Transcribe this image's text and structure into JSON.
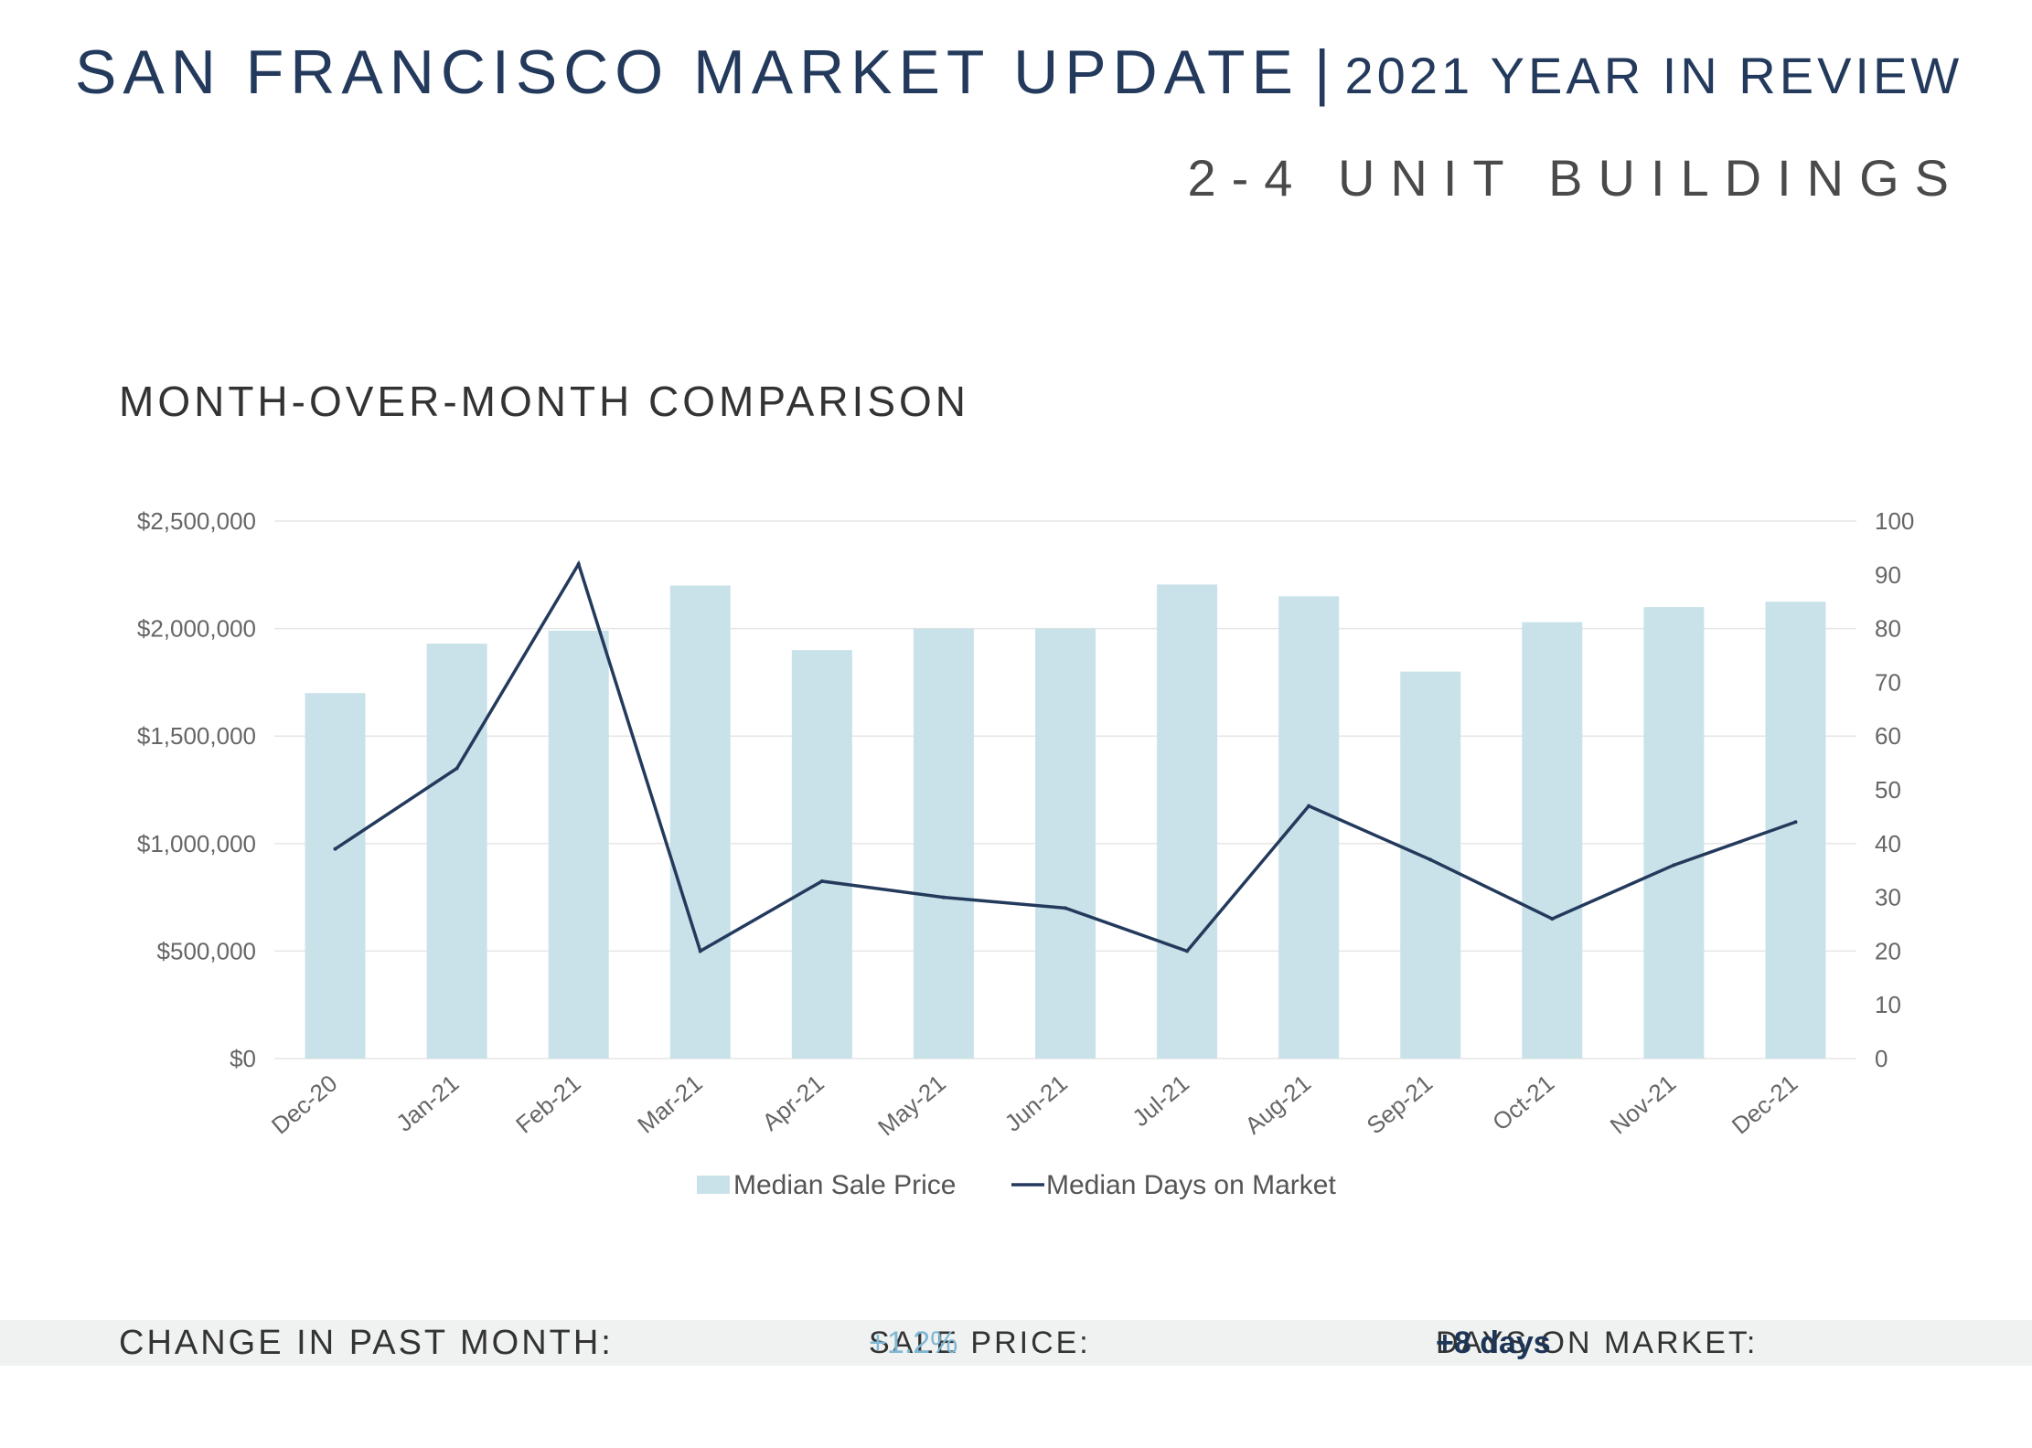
{
  "header": {
    "title": "SAN FRANCISCO MARKET UPDATE",
    "separator": "|",
    "year_label": "2021 YEAR IN REVIEW",
    "subtitle": "2-4 UNIT BUILDINGS"
  },
  "section_title": "MONTH-OVER-MONTH COMPARISON",
  "colors": {
    "bar": "#c9e2e9",
    "line": "#233a5c",
    "grid": "#e6e6e6",
    "tick_text": "#666666",
    "accent_price": "#7fb8d4",
    "accent_days": "#1d3557"
  },
  "chart_data": {
    "type": "bar+line",
    "title": "MONTH-OVER-MONTH COMPARISON",
    "categories": [
      "Dec-20",
      "Jan-21",
      "Feb-21",
      "Mar-21",
      "Apr-21",
      "May-21",
      "Jun-21",
      "Jul-21",
      "Aug-21",
      "Sep-21",
      "Oct-21",
      "Nov-21",
      "Dec-21"
    ],
    "series": [
      {
        "name": "Median Sale Price",
        "type": "bar",
        "axis": "left",
        "values": [
          1700000,
          1930000,
          1990000,
          2200000,
          1900000,
          2000000,
          2000000,
          2205000,
          2150000,
          1800000,
          2030000,
          2100000,
          2125000
        ]
      },
      {
        "name": "Median Days on Market",
        "type": "line",
        "axis": "right",
        "values": [
          39,
          54,
          92,
          20,
          33,
          30,
          28,
          20,
          47,
          37,
          26,
          36,
          44
        ]
      }
    ],
    "y_left": {
      "min": 0,
      "max": 2500000,
      "ticks": [
        0,
        500000,
        1000000,
        1500000,
        2000000,
        2500000
      ],
      "tick_labels": [
        "$0",
        "$500,000",
        "$1,000,000",
        "$1,500,000",
        "$2,000,000",
        "$2,500,000"
      ]
    },
    "y_right": {
      "min": 0,
      "max": 100,
      "ticks": [
        0,
        10,
        20,
        30,
        40,
        50,
        60,
        70,
        80,
        90,
        100
      ],
      "tick_labels": [
        "0",
        "10",
        "20",
        "30",
        "40",
        "50",
        "60",
        "70",
        "80",
        "90",
        "100"
      ]
    },
    "grid": true,
    "legend": "bottom-center"
  },
  "footer": {
    "label": "CHANGE IN PAST MONTH:",
    "sale_price_label": "SALE PRICE:",
    "sale_price_value": "+1.2%",
    "days_label": "DAYS ON MARKET:",
    "days_value": "+8 days"
  }
}
